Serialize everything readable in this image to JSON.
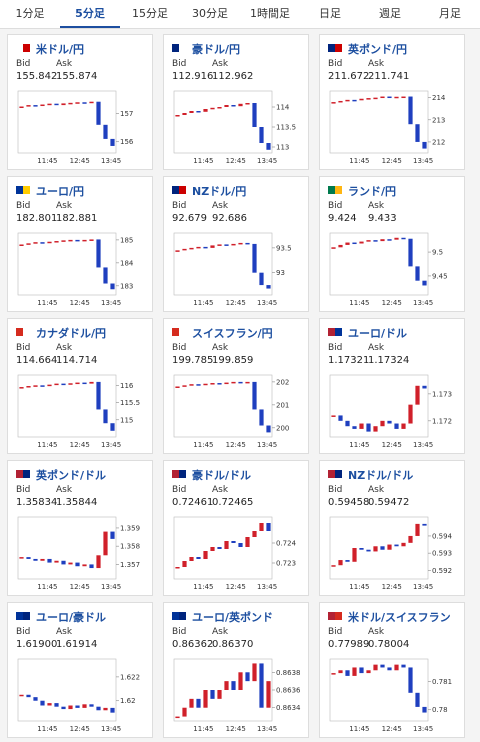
{
  "tabs": [
    "1分足",
    "5分足",
    "15分足",
    "30分足",
    "1時間足",
    "日足",
    "週足",
    "月足"
  ],
  "labels": {
    "bid": "Bid",
    "ask": "Ask"
  },
  "pairs": [
    {
      "name": "米ドル/円",
      "bid": "155.842",
      "ask": "155.874",
      "chart": {
        "type": "candlestick",
        "values": [
          157.25,
          157.3,
          157.28,
          157.32,
          157.35,
          157.3,
          157.36,
          157.38,
          157.4,
          157.38,
          157.42,
          156.6,
          156.1,
          155.85
        ],
        "ylim": [
          155.6,
          157.8
        ],
        "yticks": [
          156,
          157
        ],
        "xticks": [
          "11:45",
          "12:45",
          "13:45"
        ]
      }
    },
    {
      "name": "豪ドル/円",
      "bid": "112.916",
      "ask": "112.962",
      "chart": {
        "type": "candlestick",
        "values": [
          113.8,
          113.85,
          113.9,
          113.88,
          113.95,
          113.98,
          114.0,
          114.05,
          114.02,
          114.08,
          114.1,
          113.5,
          113.1,
          112.93
        ],
        "ylim": [
          112.85,
          114.4
        ],
        "yticks": [
          113,
          113.5,
          114
        ],
        "xticks": [
          "11:45",
          "12:45",
          "13:45"
        ]
      }
    },
    {
      "name": "英ポンド/円",
      "bid": "211.672",
      "ask": "211.741",
      "chart": {
        "type": "candlestick",
        "values": [
          213.8,
          213.85,
          213.9,
          213.88,
          213.95,
          213.98,
          214.0,
          214.05,
          214.02,
          214.04,
          214.05,
          212.8,
          212.0,
          211.7
        ],
        "ylim": [
          211.5,
          214.3
        ],
        "yticks": [
          212,
          213,
          214
        ],
        "xticks": [
          "11:45",
          "12:45",
          "13:45"
        ]
      }
    },
    {
      "name": "ユーロ/円",
      "bid": "182.801",
      "ask": "182.881",
      "chart": {
        "type": "candlestick",
        "values": [
          184.8,
          184.85,
          184.9,
          184.88,
          184.92,
          184.95,
          184.98,
          185.0,
          184.97,
          185.0,
          185.02,
          183.8,
          183.1,
          182.85
        ],
        "ylim": [
          182.6,
          185.3
        ],
        "yticks": [
          183,
          184,
          185
        ],
        "xticks": [
          "11:45",
          "12:45",
          "13:45"
        ]
      }
    },
    {
      "name": "NZドル/円",
      "bid": "92.679",
      "ask": "92.686",
      "chart": {
        "type": "candlestick",
        "values": [
          93.45,
          93.48,
          93.5,
          93.52,
          93.5,
          93.55,
          93.57,
          93.55,
          93.58,
          93.6,
          93.58,
          93.0,
          92.75,
          92.68
        ],
        "ylim": [
          92.55,
          93.8
        ],
        "yticks": [
          93,
          93.5
        ],
        "xticks": [
          "11:45",
          "12:45",
          "13:45"
        ]
      }
    },
    {
      "name": "ランド/円",
      "bid": "9.424",
      "ask": "9.433",
      "chart": {
        "type": "candlestick",
        "values": [
          9.51,
          9.515,
          9.52,
          9.518,
          9.522,
          9.525,
          9.523,
          9.527,
          9.526,
          9.53,
          9.528,
          9.47,
          9.44,
          9.43
        ],
        "ylim": [
          9.41,
          9.54
        ],
        "yticks": [
          9.45,
          9.5
        ],
        "xticks": [
          "11:45",
          "12:45",
          "13:45"
        ]
      }
    },
    {
      "name": "カナダドル/円",
      "bid": "114.664",
      "ask": "114.714",
      "chart": {
        "type": "candlestick",
        "values": [
          115.95,
          115.98,
          116.0,
          115.98,
          116.02,
          116.05,
          116.03,
          116.06,
          116.08,
          116.05,
          116.1,
          115.3,
          114.9,
          114.68
        ],
        "ylim": [
          114.5,
          116.3
        ],
        "yticks": [
          115,
          115.5,
          116
        ],
        "xticks": [
          "11:45",
          "12:45",
          "13:45"
        ]
      }
    },
    {
      "name": "スイスフラン/円",
      "bid": "199.785",
      "ask": "199.859",
      "chart": {
        "type": "candlestick",
        "values": [
          201.8,
          201.85,
          201.9,
          201.88,
          201.92,
          201.95,
          201.93,
          201.97,
          202.0,
          201.96,
          202.0,
          200.8,
          200.1,
          199.8
        ],
        "ylim": [
          199.6,
          202.3
        ],
        "yticks": [
          200,
          201,
          202
        ],
        "xticks": [
          "11:45",
          "12:45",
          "13:45"
        ]
      }
    },
    {
      "name": "ユーロ/ドル",
      "bid": "1.17321",
      "ask": "1.17324",
      "chart": {
        "type": "candlestick",
        "values": [
          1.1722,
          1.172,
          1.1718,
          1.1717,
          1.1719,
          1.1716,
          1.1718,
          1.172,
          1.1719,
          1.1717,
          1.1719,
          1.1726,
          1.1733,
          1.1732
        ],
        "ylim": [
          1.1714,
          1.1737
        ],
        "yticks": [
          1.172,
          1.173
        ],
        "xticks": [
          "11:45",
          "12:45",
          "13:45"
        ]
      }
    },
    {
      "name": "英ポンド/ドル",
      "bid": "1.35834",
      "ask": "1.35844",
      "chart": {
        "type": "candlestick",
        "values": [
          1.3574,
          1.3573,
          1.3572,
          1.3573,
          1.3571,
          1.3572,
          1.357,
          1.3571,
          1.3569,
          1.357,
          1.3568,
          1.3575,
          1.3588,
          1.3584
        ],
        "ylim": [
          1.3562,
          1.3596
        ],
        "yticks": [
          1.357,
          1.358,
          1.359
        ],
        "xticks": [
          "11:45",
          "12:45",
          "13:45"
        ]
      }
    },
    {
      "name": "豪ドル/ドル",
      "bid": "0.72461",
      "ask": "0.72465",
      "chart": {
        "type": "candlestick",
        "values": [
          0.7228,
          0.7231,
          0.7233,
          0.7232,
          0.7236,
          0.7238,
          0.7237,
          0.7241,
          0.724,
          0.7238,
          0.7243,
          0.7246,
          0.725,
          0.7246
        ],
        "ylim": [
          0.7222,
          0.7253
        ],
        "yticks": [
          0.723,
          0.724
        ],
        "xticks": [
          "11:45",
          "12:45",
          "13:45"
        ]
      }
    },
    {
      "name": "NZドル/ドル",
      "bid": "0.59458",
      "ask": "0.59472",
      "chart": {
        "type": "candlestick",
        "values": [
          0.5923,
          0.5926,
          0.5925,
          0.5933,
          0.5932,
          0.5931,
          0.5934,
          0.5932,
          0.5935,
          0.5934,
          0.5936,
          0.594,
          0.5947,
          0.5946
        ],
        "ylim": [
          0.5915,
          0.5951
        ],
        "yticks": [
          0.592,
          0.593,
          0.594
        ],
        "xticks": [
          "11:45",
          "12:45",
          "13:45"
        ]
      }
    },
    {
      "name": "ユーロ/豪ドル",
      "bid": "1.61900",
      "ask": "1.61914",
      "chart": {
        "type": "candlestick",
        "values": [
          1.6205,
          1.6203,
          1.62,
          1.6196,
          1.6198,
          1.6195,
          1.6193,
          1.6196,
          1.6194,
          1.6197,
          1.6195,
          1.6192,
          1.6194,
          1.619
        ],
        "ylim": [
          1.6183,
          1.6235
        ],
        "yticks": [
          1.62,
          1.622
        ],
        "xticks": [
          "11:45",
          "12:45",
          "13:45"
        ]
      }
    },
    {
      "name": "ユーロ/英ポンド",
      "bid": "0.86362",
      "ask": "0.86370",
      "chart": {
        "type": "candlestick",
        "values": [
          0.8633,
          0.8634,
          0.8635,
          0.8634,
          0.8636,
          0.8635,
          0.8636,
          0.8637,
          0.8636,
          0.8638,
          0.8637,
          0.8639,
          0.8634,
          0.8637
        ],
        "ylim": [
          0.86325,
          0.86395
        ],
        "yticks": [
          0.8634,
          0.8636,
          0.8638
        ],
        "xticks": [
          "11:45",
          "12:45",
          "13:45"
        ]
      }
    },
    {
      "name": "米ドル/スイスフラン",
      "bid": "0.77989",
      "ask": "0.78004",
      "chart": {
        "type": "candlestick",
        "values": [
          0.7813,
          0.7814,
          0.7812,
          0.7815,
          0.7813,
          0.7814,
          0.7816,
          0.7815,
          0.7814,
          0.7816,
          0.7815,
          0.7806,
          0.7801,
          0.7799
        ],
        "ylim": [
          0.7796,
          0.7818
        ],
        "yticks": [
          0.78,
          0.781
        ],
        "xticks": [
          "11:45",
          "12:45",
          "13:45"
        ]
      }
    }
  ]
}
